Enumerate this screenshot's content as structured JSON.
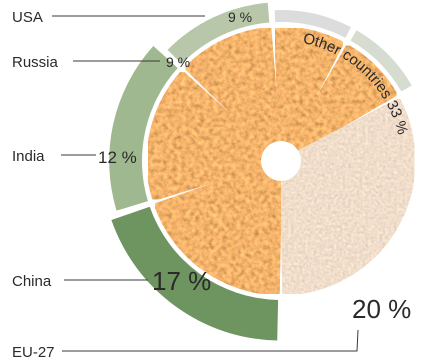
{
  "chart_data": {
    "type": "pie",
    "categories": [
      "EU-27",
      "China",
      "India",
      "Russia",
      "USA",
      "Other countries"
    ],
    "values": [
      20,
      17,
      12,
      9,
      9,
      33
    ],
    "value_labels": [
      "20 %",
      "17 %",
      "12 %",
      "9 %",
      "9 %",
      "33 %"
    ],
    "title": "",
    "legend": "none",
    "slice_fill": "grain-texture",
    "ring_colors": {
      "EU-27": "#6e9460",
      "China": "#9fb88f",
      "India": "#b8c7aa",
      "Russia": "#dcdcdc",
      "USA": "#d6ddd0"
    },
    "other_fill": "#d7b3a0",
    "hub_color": "#ffffff"
  }
}
